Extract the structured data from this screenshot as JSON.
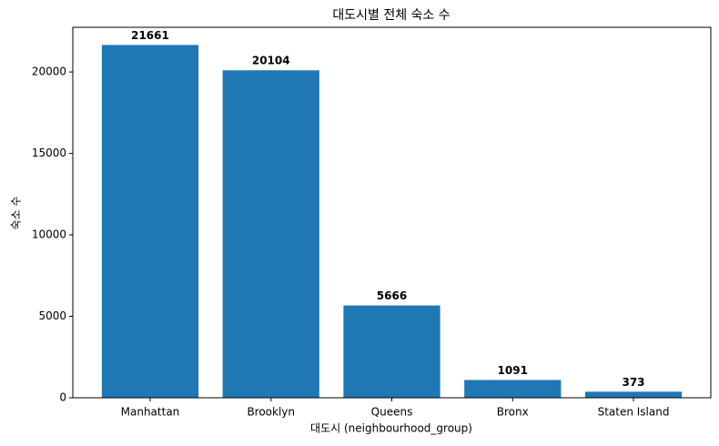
{
  "chart_data": {
    "type": "bar",
    "title": "대도시별 전체 숙소 수",
    "x_label": "대도시 (neighbourhood_group)",
    "y_label": "숙소 수",
    "categories": [
      "Manhattan",
      "Brooklyn",
      "Queens",
      "Bronx",
      "Staten Island"
    ],
    "values": [
      21661,
      20104,
      5666,
      1091,
      373
    ],
    "color": "#1f77b4",
    "ylim": [
      0,
      22744
    ],
    "yticks": [
      0,
      5000,
      10000,
      15000,
      20000
    ],
    "grid": false
  }
}
